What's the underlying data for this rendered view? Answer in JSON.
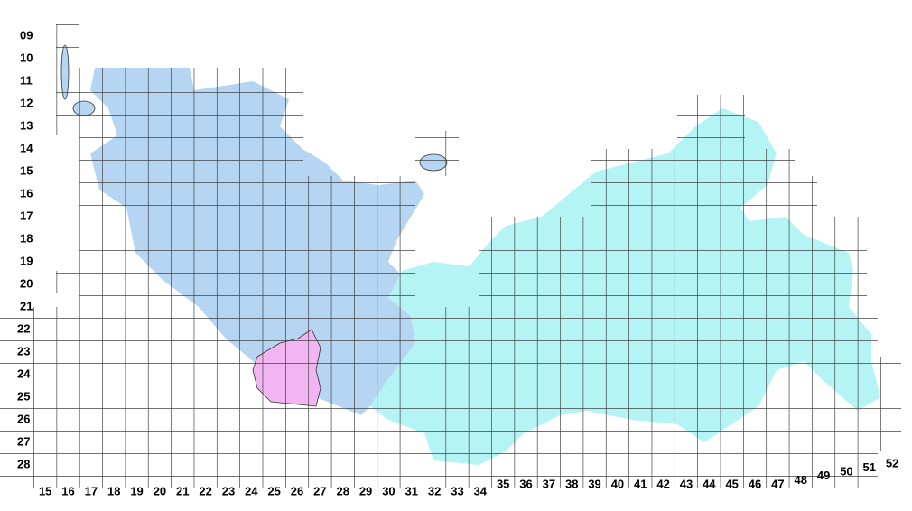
{
  "map": {
    "row_labels": [
      "09",
      "10",
      "11",
      "12",
      "13",
      "14",
      "15",
      "16",
      "17",
      "18",
      "19",
      "20",
      "21",
      "22",
      "23",
      "24",
      "25",
      "26",
      "27",
      "28"
    ],
    "column_labels": [
      "15",
      "16",
      "17",
      "18",
      "19",
      "20",
      "21",
      "22",
      "23",
      "24",
      "25",
      "26",
      "27",
      "28",
      "29",
      "30",
      "31",
      "32",
      "33",
      "34",
      "35",
      "36",
      "37",
      "38",
      "39",
      "40",
      "41",
      "42",
      "43",
      "44",
      "45",
      "46",
      "47",
      "48",
      "49",
      "50",
      "51",
      "52"
    ]
  }
}
